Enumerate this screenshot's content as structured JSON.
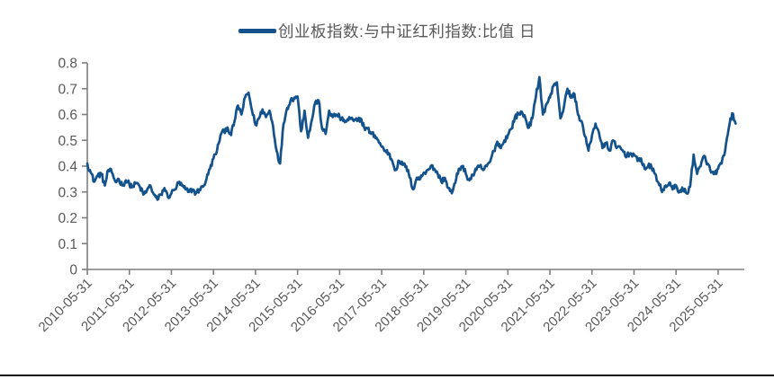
{
  "colors": {
    "series": "#14528C",
    "axis": "#7F7F7F",
    "text": "#595959",
    "background": "#FFFFFF",
    "bottom_border": "#111111"
  },
  "chart_data": {
    "type": "line",
    "title": "创业板指数:与中证红利指数:比值 日",
    "series_name": "创业板指数:与中证红利指数:比值",
    "frequency": "日",
    "legend_position": "top-center",
    "grid": false,
    "ylim": [
      0,
      0.8
    ],
    "y_tick_labels": [
      "0",
      "0.1",
      "0.2",
      "0.3",
      "0.4",
      "0.5",
      "0.6",
      "0.7",
      "0.8"
    ],
    "y_tick_values": [
      0,
      0.1,
      0.2,
      0.3,
      0.4,
      0.5,
      0.6,
      0.7,
      0.8
    ],
    "x_tick_labels": [
      "2010-05-31",
      "2011-05-31",
      "2012-05-31",
      "2013-05-31",
      "2014-05-31",
      "2015-05-31",
      "2016-05-31",
      "2017-05-31",
      "2018-05-31",
      "2019-05-31",
      "2020-05-31",
      "2021-05-31",
      "2022-05-31",
      "2023-05-31",
      "2024-05-31",
      "2025-05-31"
    ],
    "series": [
      {
        "name": "创业板指数:与中证红利指数:比值 日",
        "start_month": "2010-05",
        "interval": "monthly",
        "values": [
          0.41,
          0.375,
          0.34,
          0.365,
          0.37,
          0.325,
          0.385,
          0.375,
          0.34,
          0.35,
          0.325,
          0.345,
          0.33,
          0.32,
          0.335,
          0.32,
          0.29,
          0.305,
          0.325,
          0.29,
          0.27,
          0.29,
          0.315,
          0.28,
          0.295,
          0.31,
          0.335,
          0.325,
          0.31,
          0.3,
          0.31,
          0.295,
          0.31,
          0.32,
          0.35,
          0.39,
          0.43,
          0.46,
          0.52,
          0.535,
          0.55,
          0.52,
          0.575,
          0.635,
          0.6,
          0.665,
          0.685,
          0.615,
          0.56,
          0.585,
          0.62,
          0.59,
          0.615,
          0.555,
          0.46,
          0.41,
          0.565,
          0.625,
          0.655,
          0.665,
          0.67,
          0.535,
          0.615,
          0.51,
          0.575,
          0.645,
          0.655,
          0.545,
          0.525,
          0.615,
          0.59,
          0.6,
          0.59,
          0.575,
          0.575,
          0.585,
          0.575,
          0.575,
          0.585,
          0.55,
          0.545,
          0.525,
          0.52,
          0.5,
          0.475,
          0.46,
          0.45,
          0.42,
          0.385,
          0.42,
          0.405,
          0.4,
          0.355,
          0.31,
          0.355,
          0.35,
          0.375,
          0.385,
          0.4,
          0.39,
          0.37,
          0.34,
          0.355,
          0.315,
          0.295,
          0.335,
          0.39,
          0.4,
          0.37,
          0.345,
          0.365,
          0.385,
          0.4,
          0.385,
          0.4,
          0.42,
          0.46,
          0.495,
          0.47,
          0.5,
          0.52,
          0.545,
          0.59,
          0.6,
          0.61,
          0.585,
          0.55,
          0.585,
          0.67,
          0.745,
          0.6,
          0.64,
          0.665,
          0.71,
          0.725,
          0.585,
          0.63,
          0.7,
          0.665,
          0.68,
          0.6,
          0.575,
          0.515,
          0.46,
          0.52,
          0.565,
          0.53,
          0.47,
          0.49,
          0.46,
          0.5,
          0.47,
          0.475,
          0.455,
          0.44,
          0.45,
          0.445,
          0.42,
          0.43,
          0.39,
          0.4,
          0.395,
          0.37,
          0.335,
          0.3,
          0.325,
          0.335,
          0.31,
          0.325,
          0.3,
          0.31,
          0.295,
          0.32,
          0.445,
          0.37,
          0.4,
          0.44,
          0.41,
          0.375,
          0.37,
          0.39,
          0.41,
          0.46,
          0.545,
          0.605,
          0.565
        ]
      }
    ]
  },
  "render_hints": {
    "jitter_amplitude": 0.011,
    "substeps_per_month": 4,
    "noise_seed": 12345
  }
}
